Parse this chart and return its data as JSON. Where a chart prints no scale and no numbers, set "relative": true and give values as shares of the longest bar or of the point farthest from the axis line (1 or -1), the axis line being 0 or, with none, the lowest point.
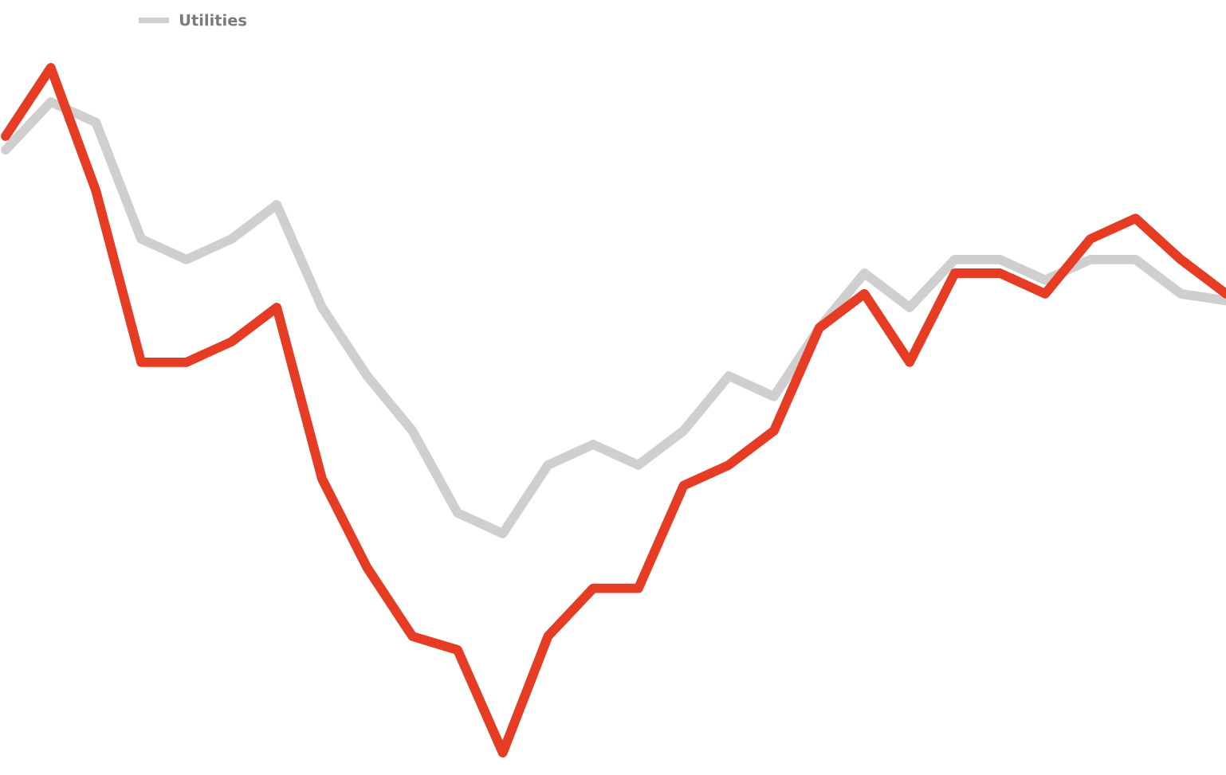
{
  "chart_data": {
    "type": "line",
    "relative": true,
    "legend": "top left",
    "line_style": "solid",
    "grid": false,
    "categories": [
      null,
      null,
      null,
      null,
      null,
      null,
      null,
      null,
      null,
      null,
      null,
      null,
      null,
      null,
      null,
      null,
      null,
      null,
      null,
      null,
      null,
      null,
      null,
      null,
      null,
      null,
      null,
      null
    ],
    "series": [
      {
        "name": "Utilities",
        "color": "#cfcfcf",
        "values": [
          0.88,
          0.95,
          0.92,
          0.75,
          0.72,
          0.75,
          0.8,
          0.65,
          0.55,
          0.47,
          0.35,
          0.32,
          0.42,
          0.45,
          0.42,
          0.47,
          0.55,
          0.52,
          0.62,
          0.7,
          0.65,
          0.72,
          0.72,
          0.69,
          0.72,
          0.72,
          0.67,
          0.66
        ]
      },
      {
        "color": "#e63c23",
        "values": [
          0.9,
          1.0,
          0.82,
          0.57,
          0.57,
          0.6,
          0.65,
          0.4,
          0.27,
          0.17,
          0.15,
          0.0,
          0.17,
          0.24,
          0.24,
          0.39,
          0.42,
          0.47,
          0.62,
          0.67,
          0.57,
          0.7,
          0.7,
          0.67,
          0.75,
          0.78,
          0.72,
          0.67
        ]
      }
    ]
  }
}
